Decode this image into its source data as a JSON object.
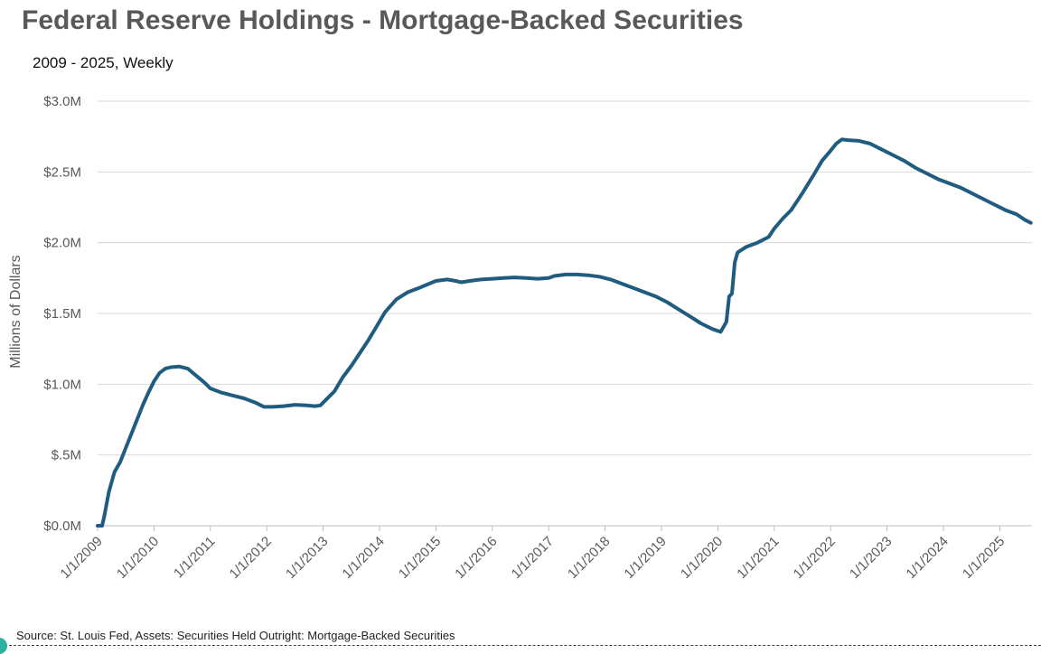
{
  "chart_data": {
    "type": "line",
    "title": "Federal Reserve Holdings - Mortgage-Backed Securities",
    "subtitle": "2009 - 2025, Weekly",
    "ylabel": "Millions of Dollars",
    "xlabel": "",
    "source": "Source: St. Louis Fed, Assets: Securities Held Outright: Mortgage-Backed Securities",
    "ylim": [
      0,
      3.0
    ],
    "xlim": [
      2009.0,
      2025.6
    ],
    "y_ticks": [
      {
        "value": 0.0,
        "label": "$0.0M"
      },
      {
        "value": 0.5,
        "label": "$.5M"
      },
      {
        "value": 1.0,
        "label": "$1.0M"
      },
      {
        "value": 1.5,
        "label": "$1.5M"
      },
      {
        "value": 2.0,
        "label": "$2.0M"
      },
      {
        "value": 2.5,
        "label": "$2.5M"
      },
      {
        "value": 3.0,
        "label": "$3.0M"
      }
    ],
    "x_ticks": [
      {
        "value": 2009,
        "label": "1/1/2009"
      },
      {
        "value": 2010,
        "label": "1/1/2010"
      },
      {
        "value": 2011,
        "label": "1/1/2011"
      },
      {
        "value": 2012,
        "label": "1/1/2012"
      },
      {
        "value": 2013,
        "label": "1/1/2013"
      },
      {
        "value": 2014,
        "label": "1/1/2014"
      },
      {
        "value": 2015,
        "label": "1/1/2015"
      },
      {
        "value": 2016,
        "label": "1/1/2016"
      },
      {
        "value": 2017,
        "label": "1/1/2017"
      },
      {
        "value": 2018,
        "label": "1/1/2018"
      },
      {
        "value": 2019,
        "label": "1/1/2019"
      },
      {
        "value": 2020,
        "label": "1/1/2020"
      },
      {
        "value": 2021,
        "label": "1/1/2021"
      },
      {
        "value": 2022,
        "label": "1/1/2022"
      },
      {
        "value": 2023,
        "label": "1/1/2023"
      },
      {
        "value": 2024,
        "label": "1/1/2024"
      },
      {
        "value": 2025,
        "label": "1/1/2025"
      }
    ],
    "grid": true,
    "line_color": "#1f5c7f",
    "series": [
      {
        "name": "",
        "points": [
          [
            2009.0,
            0.0
          ],
          [
            2009.08,
            0.0
          ],
          [
            2009.12,
            0.07
          ],
          [
            2009.2,
            0.24
          ],
          [
            2009.3,
            0.38
          ],
          [
            2009.4,
            0.45
          ],
          [
            2009.5,
            0.55
          ],
          [
            2009.6,
            0.65
          ],
          [
            2009.7,
            0.75
          ],
          [
            2009.8,
            0.85
          ],
          [
            2009.9,
            0.94
          ],
          [
            2010.0,
            1.02
          ],
          [
            2010.1,
            1.08
          ],
          [
            2010.2,
            1.11
          ],
          [
            2010.3,
            1.12
          ],
          [
            2010.45,
            1.125
          ],
          [
            2010.6,
            1.11
          ],
          [
            2010.75,
            1.06
          ],
          [
            2010.9,
            1.01
          ],
          [
            2011.0,
            0.97
          ],
          [
            2011.2,
            0.94
          ],
          [
            2011.4,
            0.92
          ],
          [
            2011.6,
            0.9
          ],
          [
            2011.8,
            0.87
          ],
          [
            2011.95,
            0.84
          ],
          [
            2012.1,
            0.84
          ],
          [
            2012.3,
            0.845
          ],
          [
            2012.5,
            0.855
          ],
          [
            2012.7,
            0.85
          ],
          [
            2012.85,
            0.845
          ],
          [
            2012.95,
            0.85
          ],
          [
            2013.05,
            0.89
          ],
          [
            2013.2,
            0.95
          ],
          [
            2013.35,
            1.05
          ],
          [
            2013.5,
            1.13
          ],
          [
            2013.65,
            1.22
          ],
          [
            2013.8,
            1.31
          ],
          [
            2013.95,
            1.41
          ],
          [
            2014.1,
            1.51
          ],
          [
            2014.3,
            1.6
          ],
          [
            2014.5,
            1.65
          ],
          [
            2014.7,
            1.68
          ],
          [
            2014.85,
            1.705
          ],
          [
            2015.0,
            1.73
          ],
          [
            2015.2,
            1.74
          ],
          [
            2015.35,
            1.73
          ],
          [
            2015.45,
            1.72
          ],
          [
            2015.6,
            1.73
          ],
          [
            2015.8,
            1.74
          ],
          [
            2016.0,
            1.745
          ],
          [
            2016.2,
            1.75
          ],
          [
            2016.4,
            1.755
          ],
          [
            2016.6,
            1.75
          ],
          [
            2016.8,
            1.745
          ],
          [
            2017.0,
            1.75
          ],
          [
            2017.1,
            1.765
          ],
          [
            2017.3,
            1.775
          ],
          [
            2017.5,
            1.775
          ],
          [
            2017.7,
            1.77
          ],
          [
            2017.9,
            1.76
          ],
          [
            2018.1,
            1.74
          ],
          [
            2018.3,
            1.71
          ],
          [
            2018.5,
            1.68
          ],
          [
            2018.7,
            1.65
          ],
          [
            2018.9,
            1.62
          ],
          [
            2019.1,
            1.58
          ],
          [
            2019.3,
            1.53
          ],
          [
            2019.5,
            1.48
          ],
          [
            2019.7,
            1.43
          ],
          [
            2019.9,
            1.39
          ],
          [
            2020.05,
            1.37
          ],
          [
            2020.15,
            1.44
          ],
          [
            2020.2,
            1.62
          ],
          [
            2020.25,
            1.64
          ],
          [
            2020.3,
            1.86
          ],
          [
            2020.35,
            1.93
          ],
          [
            2020.5,
            1.97
          ],
          [
            2020.7,
            2.0
          ],
          [
            2020.9,
            2.04
          ],
          [
            2021.0,
            2.1
          ],
          [
            2021.15,
            2.17
          ],
          [
            2021.3,
            2.23
          ],
          [
            2021.5,
            2.35
          ],
          [
            2021.7,
            2.48
          ],
          [
            2021.85,
            2.58
          ],
          [
            2022.0,
            2.65
          ],
          [
            2022.1,
            2.7
          ],
          [
            2022.2,
            2.73
          ],
          [
            2022.3,
            2.725
          ],
          [
            2022.5,
            2.72
          ],
          [
            2022.7,
            2.7
          ],
          [
            2022.9,
            2.66
          ],
          [
            2023.1,
            2.62
          ],
          [
            2023.3,
            2.58
          ],
          [
            2023.5,
            2.53
          ],
          [
            2023.7,
            2.49
          ],
          [
            2023.9,
            2.45
          ],
          [
            2024.1,
            2.42
          ],
          [
            2024.3,
            2.39
          ],
          [
            2024.5,
            2.35
          ],
          [
            2024.7,
            2.31
          ],
          [
            2024.9,
            2.27
          ],
          [
            2025.1,
            2.23
          ],
          [
            2025.3,
            2.2
          ],
          [
            2025.45,
            2.16
          ],
          [
            2025.55,
            2.14
          ]
        ]
      }
    ]
  }
}
